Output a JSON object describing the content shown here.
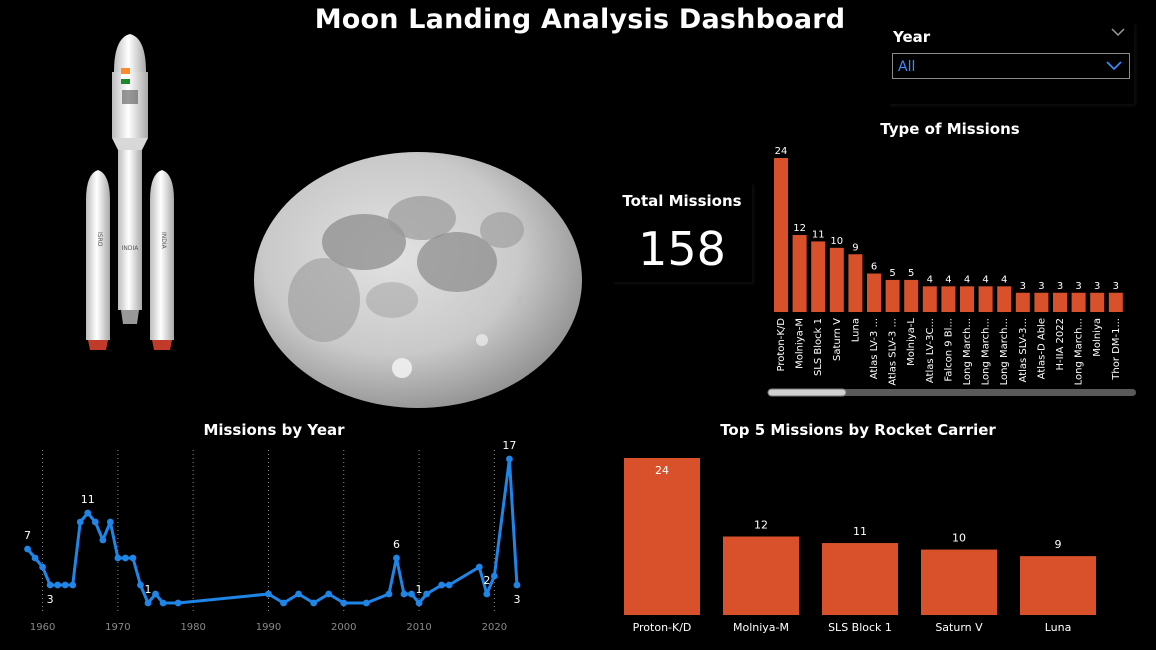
{
  "header": {
    "title": "Moon Landing Analysis Dashboard"
  },
  "slicer": {
    "label": "Year",
    "value": "All"
  },
  "kpi": {
    "label": "Total Missions",
    "value": "158"
  },
  "colors": {
    "bar": "#d9512a",
    "line": "#1f86e8",
    "background": "#000000"
  },
  "rocket": {
    "label_left": "ISRO",
    "label_center": "INDIA",
    "label_right": "INDIA"
  },
  "chart_data": [
    {
      "type": "bar",
      "title": "Type of Missions",
      "categories": [
        "Proton-K/D",
        "Molniya-M",
        "SLS Block 1",
        "Saturn V",
        "Luna",
        "Atlas LV-3 ...",
        "Atlas SLV-3 ...",
        "Molniya-L",
        "Atlas LV-3C...",
        "Falcon 9 Bl...",
        "Long March...",
        "Long March...",
        "Long March...",
        "Atlas SLV-3...",
        "Atlas-D Able",
        "H-IIA 2022",
        "Long March...",
        "Molniya",
        "Thor DM-1..."
      ],
      "values": [
        24,
        12,
        11,
        10,
        9,
        6,
        5,
        5,
        4,
        4,
        4,
        4,
        4,
        3,
        3,
        3,
        3,
        3,
        3
      ],
      "data_labels": true,
      "ylim": [
        0,
        24
      ]
    },
    {
      "type": "line",
      "title": "Missions by Year",
      "x_ticks": [
        1960,
        1970,
        1980,
        1990,
        2000,
        2010,
        2020
      ],
      "x": [
        1958,
        1959,
        1960,
        1961,
        1962,
        1963,
        1964,
        1965,
        1966,
        1967,
        1968,
        1969,
        1970,
        1971,
        1972,
        1973,
        1974,
        1975,
        1976,
        1978,
        1990,
        1992,
        1994,
        1996,
        1998,
        2000,
        2003,
        2006,
        2007,
        2008,
        2009,
        2010,
        2011,
        2013,
        2014,
        2018,
        2019,
        2020,
        2022,
        2023
      ],
      "values": [
        7,
        6,
        5,
        3,
        3,
        3,
        3,
        10,
        11,
        10,
        8,
        10,
        6,
        6,
        6,
        3,
        1,
        2,
        1,
        1,
        2,
        1,
        2,
        1,
        2,
        1,
        1,
        2,
        6,
        2,
        2,
        1,
        2,
        3,
        3,
        5,
        2,
        4,
        17,
        3
      ],
      "point_labels": [
        {
          "x": 1958,
          "text": "7",
          "pos": "above"
        },
        {
          "x": 1961,
          "text": "3",
          "pos": "below"
        },
        {
          "x": 1966,
          "text": "11",
          "pos": "above"
        },
        {
          "x": 1974,
          "text": "1",
          "pos": "above"
        },
        {
          "x": 2007,
          "text": "6",
          "pos": "above"
        },
        {
          "x": 2010,
          "text": "1",
          "pos": "above"
        },
        {
          "x": 2019,
          "text": "2",
          "pos": "above"
        },
        {
          "x": 2022,
          "text": "17",
          "pos": "above"
        },
        {
          "x": 2023,
          "text": "3",
          "pos": "below"
        }
      ],
      "xlim": [
        1957,
        2025
      ],
      "ylim": [
        0,
        18
      ],
      "grid": "vertical-dotted"
    },
    {
      "type": "bar",
      "title": "Top 5 Missions by Rocket Carrier",
      "categories": [
        "Proton-K/D",
        "Molniya-M",
        "SLS Block 1",
        "Saturn V",
        "Luna"
      ],
      "values": [
        24,
        12,
        11,
        10,
        9
      ],
      "data_labels": true,
      "ylim": [
        0,
        24
      ]
    }
  ]
}
